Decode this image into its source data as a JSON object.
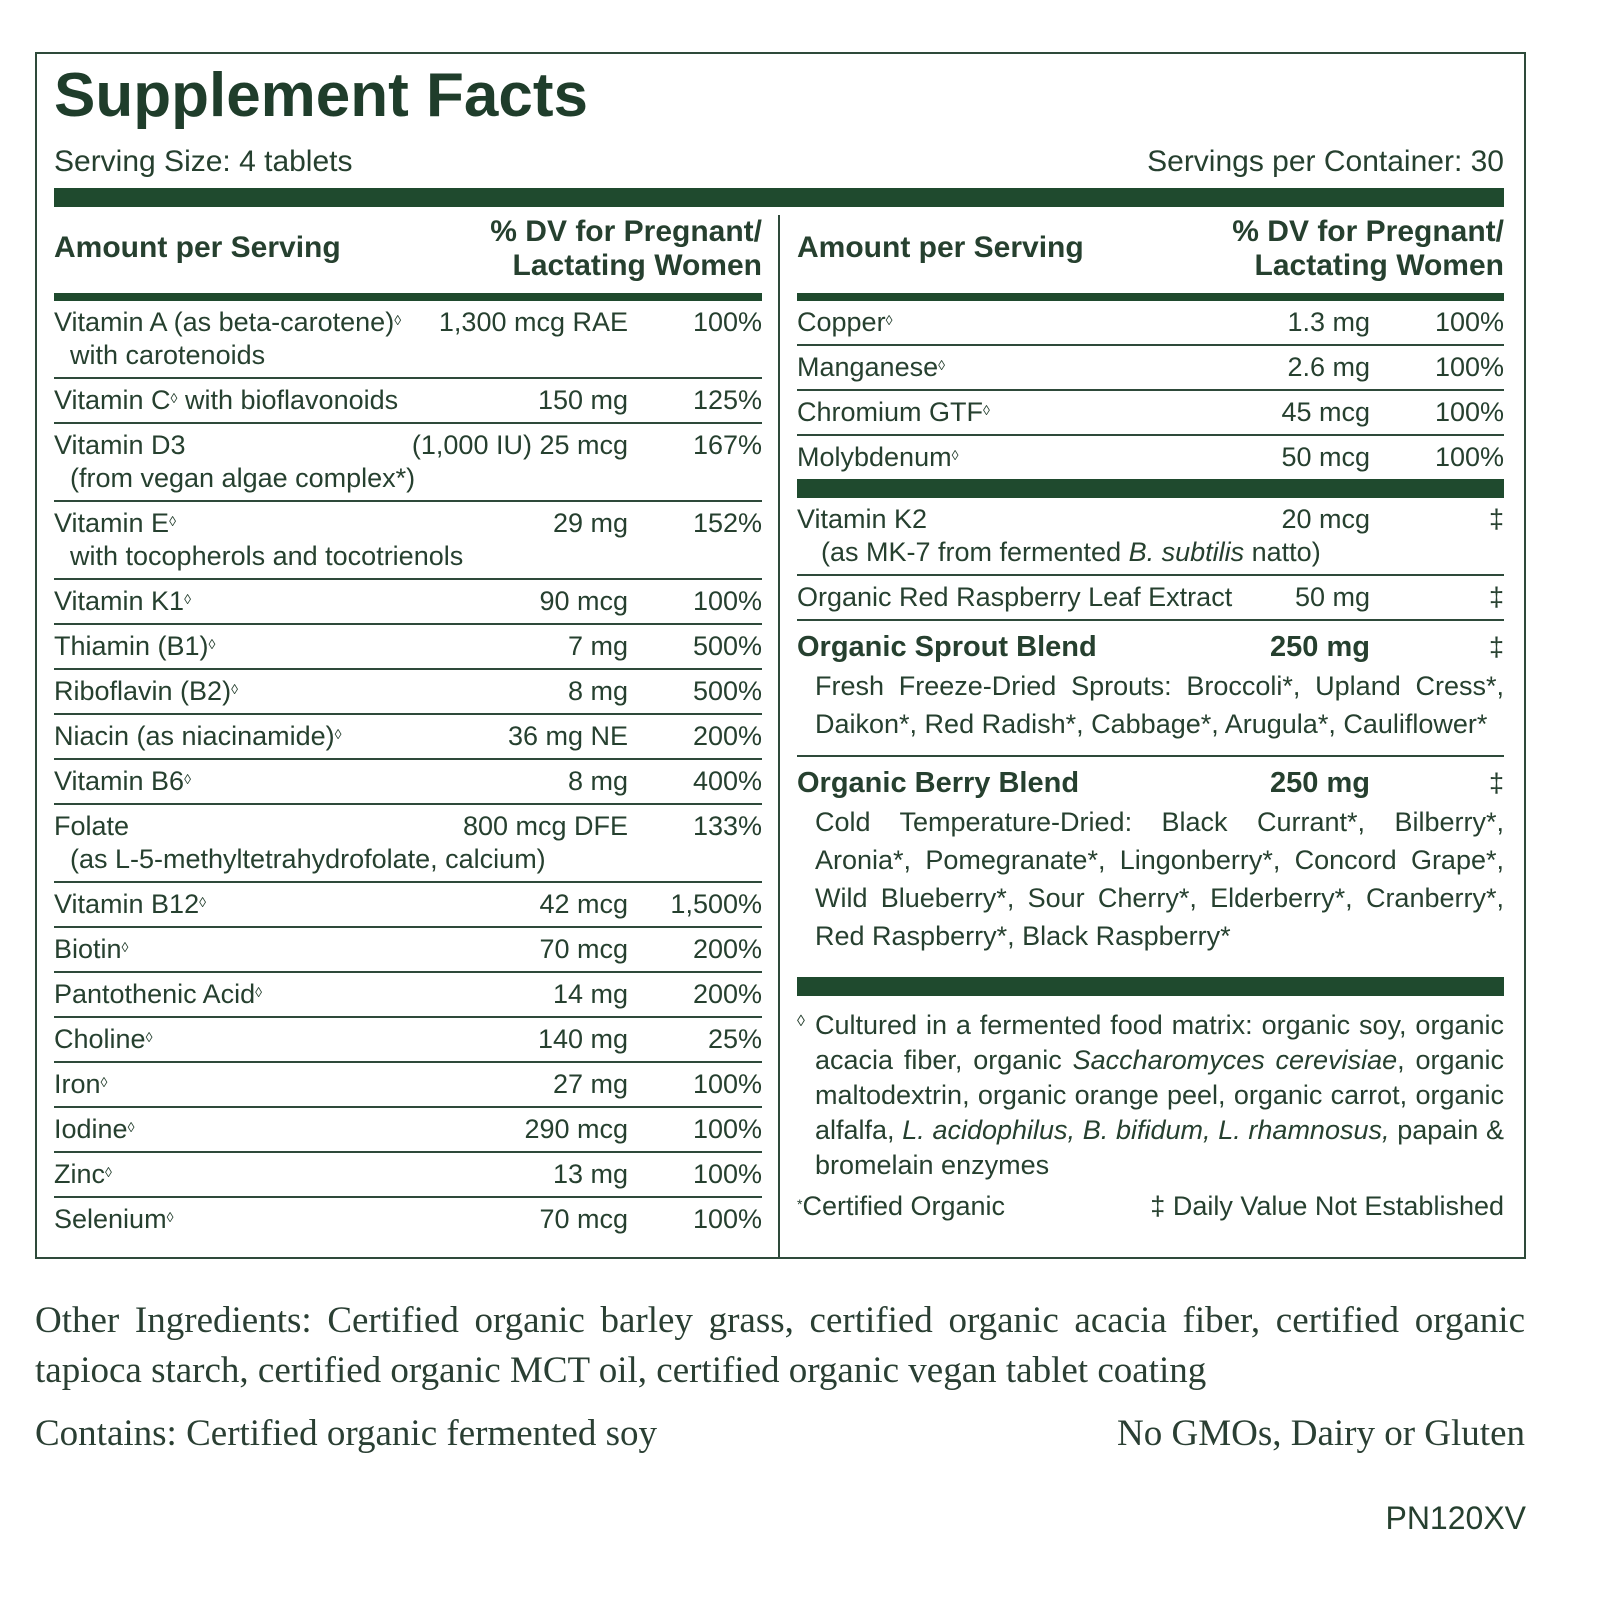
{
  "header": {
    "title": "Supplement Facts",
    "serving_size": "Serving Size: 4 tablets",
    "servings_per_container": "Servings per Container: 30"
  },
  "left_column": {
    "amount_header": "Amount per Serving",
    "dv_header": [
      "% DV for Pregnant/",
      "Lactating Women"
    ],
    "rows": [
      {
        "name": "Vitamin A (as beta-carotene)",
        "mark": "◊",
        "detail": "with carotenoids",
        "amount": "1,300 mcg RAE",
        "dv": "100%"
      },
      {
        "name": "Vitamin C",
        "mark": "◊",
        "name_after": "with bioflavonoids",
        "amount": "150 mg",
        "dv": "125%"
      },
      {
        "name": "Vitamin D3",
        "detail": "(from vegan algae complex*)",
        "amount": "(1,000 IU) 25 mcg",
        "dv": "167%"
      },
      {
        "name": "Vitamin E",
        "mark": "◊",
        "detail": "with tocopherols and tocotrienols",
        "amount": "29 mg",
        "dv": "152%"
      },
      {
        "name": "Vitamin K1",
        "mark": "◊",
        "amount": "90 mcg",
        "dv": "100%"
      },
      {
        "name": "Thiamin (B1)",
        "mark": "◊",
        "amount": "7 mg",
        "dv": "500%"
      },
      {
        "name": "Riboflavin (B2)",
        "mark": "◊",
        "amount": "8 mg",
        "dv": "500%"
      },
      {
        "name": "Niacin (as niacinamide)",
        "mark": "◊",
        "amount": "36 mg NE",
        "dv": "200%"
      },
      {
        "name": "Vitamin B6",
        "mark": "◊",
        "amount": "8 mg",
        "dv": "400%"
      },
      {
        "name": "Folate",
        "detail": "(as L-5-methyltetrahydrofolate, calcium)",
        "amount": "800 mcg DFE",
        "dv": "133%"
      },
      {
        "name": "Vitamin B12",
        "mark": "◊",
        "amount": "42 mcg",
        "dv": "1,500%"
      },
      {
        "name": "Biotin",
        "mark": "◊",
        "amount": "70 mcg",
        "dv": "200%"
      },
      {
        "name": "Pantothenic Acid",
        "mark": "◊",
        "amount": "14 mg",
        "dv": "200%"
      },
      {
        "name": "Choline",
        "mark": "◊",
        "amount": "140 mg",
        "dv": "25%"
      },
      {
        "name": "Iron",
        "mark": "◊",
        "amount": "27 mg",
        "dv": "100%"
      },
      {
        "name": "Iodine",
        "mark": "◊",
        "amount": "290 mcg",
        "dv": "100%"
      },
      {
        "name": "Zinc",
        "mark": "◊",
        "amount": "13 mg",
        "dv": "100%"
      },
      {
        "name": "Selenium",
        "mark": "◊",
        "amount": "70 mcg",
        "dv": "100%"
      }
    ]
  },
  "right_column": {
    "amount_header": "Amount per Serving",
    "dv_header": [
      "% DV for Pregnant/",
      "Lactating Women"
    ],
    "minerals": [
      {
        "name": "Copper",
        "mark": "◊",
        "amount": "1.3 mg",
        "dv": "100%"
      },
      {
        "name": "Manganese",
        "mark": "◊",
        "amount": "2.6 mg",
        "dv": "100%"
      },
      {
        "name": "Chromium GTF",
        "mark": "◊",
        "amount": "45 mcg",
        "dv": "100%"
      },
      {
        "name": "Molybdenum",
        "mark": "◊",
        "amount": "50 mcg",
        "dv": "100%"
      }
    ],
    "other": [
      {
        "name": "Vitamin K2",
        "detail": [
          {
            "text": "(as MK-7 from fermented "
          },
          {
            "text": "B. subtilis",
            "italic": true
          },
          {
            "text": " natto)"
          }
        ],
        "amount": "20 mcg",
        "dv": "‡"
      },
      {
        "name": "Organic Red Raspberry Leaf Extract",
        "amount": "50 mg",
        "dv": "‡"
      }
    ],
    "blends": [
      {
        "name": "Organic Sprout Blend",
        "amount": "250 mg",
        "dv": "‡",
        "description": "Fresh Freeze-Dried Sprouts: Broccoli*, Upland Cress*, Daikon*, Red Radish*, Cabbage*, Arugula*, Cauliflower*"
      },
      {
        "name": "Organic Berry Blend",
        "amount": "250 mg",
        "dv": "‡",
        "description": "Cold Temperature-Dried: Black Currant*, Bilberry*, Aronia*, Pomegranate*, Lingonberry*, Concord Grape*, Wild Blueberry*, Sour Cherry*, Elderberry*, Cranberry*, Red Raspberry*, Black Raspberry*"
      }
    ],
    "footnote": {
      "symbol": "◊",
      "segments": [
        {
          "text": "Cultured in a fermented food matrix: organic soy, organic acacia fiber, organic "
        },
        {
          "text": "Saccharomyces cerevisiae",
          "italic": true
        },
        {
          "text": ", organic maltodextrin, organic orange peel, organic carrot, organic alfalfa, "
        },
        {
          "text": "L. acidophilus, B. bifidum, L. rhamnosus,",
          "italic": true
        },
        {
          "text": " papain & bromelain enzymes"
        }
      ]
    },
    "certified_organic": {
      "symbol": "*",
      "text": "Certified Organic"
    },
    "daily_value_note": "‡ Daily Value Not Established"
  },
  "other_ingredients": "Other Ingredients:  Certified organic barley grass, certified organic acacia fiber, certified organic tapioca starch, certified organic MCT oil, certified organic vegan tablet coating",
  "contains": "Contains: Certified organic fermented soy",
  "free_from": "No GMOs, Dairy or Gluten",
  "product_code": "PN120XV"
}
